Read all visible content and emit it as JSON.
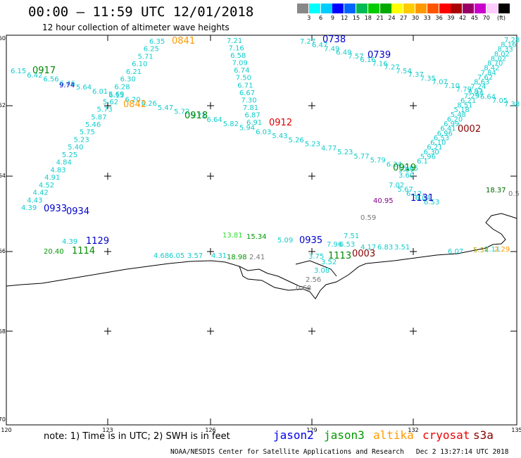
{
  "header": {
    "title": "00:00 – 11:59 UTC 12/01/2018",
    "subtitle": "12 hour collection of altimeter wave heights"
  },
  "legend": {
    "units": "(ft)",
    "items": [
      {
        "label": "",
        "color": "#888888"
      },
      {
        "label": "3",
        "color": "#00ffff"
      },
      {
        "label": "6",
        "color": "#00ccff"
      },
      {
        "label": "9",
        "color": "#0000ff"
      },
      {
        "label": "12",
        "color": "#0066ff"
      },
      {
        "label": "15",
        "color": "#00bb55"
      },
      {
        "label": "18",
        "color": "#00cc00"
      },
      {
        "label": "21",
        "color": "#00aa00"
      },
      {
        "label": "24",
        "color": "#ffff00"
      },
      {
        "label": "27",
        "color": "#ffcc00"
      },
      {
        "label": "30",
        "color": "#ff9900"
      },
      {
        "label": "33",
        "color": "#ff5500"
      },
      {
        "label": "36",
        "color": "#ff0000"
      },
      {
        "label": "39",
        "color": "#aa0000"
      },
      {
        "label": "42",
        "color": "#990066"
      },
      {
        "label": "45",
        "color": "#cc00cc"
      },
      {
        "label": "70",
        "color": "#ffccff"
      },
      {
        "label": "",
        "color": "#000000"
      }
    ]
  },
  "map": {
    "lat_labels": [
      "-60",
      "-62",
      "-64",
      "-66",
      "-68",
      "-70"
    ],
    "lon_labels": [
      "120",
      "123",
      "126",
      "129",
      "132",
      "135"
    ],
    "pass_labels": [
      {
        "text": "0738",
        "color": "#0000cc"
      },
      {
        "text": "0739",
        "color": "#0000cc"
      },
      {
        "text": "0841",
        "color": "#ff9900"
      },
      {
        "text": "0842",
        "color": "#ff9900"
      },
      {
        "text": "0917",
        "color": "#008800"
      },
      {
        "text": "0918",
        "color": "#008800"
      },
      {
        "text": "0919",
        "color": "#008800"
      },
      {
        "text": "0912",
        "color": "#dd0000"
      },
      {
        "text": "0002",
        "color": "#880000"
      },
      {
        "text": "0003",
        "color": "#880000"
      },
      {
        "text": "0933",
        "color": "#0000cc"
      },
      {
        "text": "0934",
        "color": "#0000cc"
      },
      {
        "text": "0935",
        "color": "#0000cc"
      },
      {
        "text": "1129",
        "color": "#0000cc"
      },
      {
        "text": "1131",
        "color": "#0000cc"
      },
      {
        "text": "1114",
        "color": "#008800"
      },
      {
        "text": "1113",
        "color": "#008800"
      }
    ],
    "readings": {
      "c1": [
        "6.35",
        "6.25",
        "5.71",
        "6.10",
        "6.21",
        "6.30",
        "6.28",
        "5.69",
        "5.62",
        "5.73",
        "5.87",
        "5.46",
        "5.75",
        "5.23",
        "5.40",
        "5.25",
        "4.84",
        "4.83",
        "4.91",
        "4.52",
        "4.42",
        "4.43",
        "4.39"
      ],
      "c2": [
        "7.21",
        "7.16",
        "6.58",
        "7.09",
        "6.74",
        "7.50",
        "6.71",
        "6.67",
        "7.30",
        "7.81",
        "6.87",
        "6.91"
      ],
      "c3": [
        "7.27",
        "6.47",
        "7.49",
        "6.49",
        "7.57",
        "6.16",
        "7.16",
        "7.27",
        "7.54",
        "7.37",
        "7.35",
        "7.07",
        "7.10",
        "7.79",
        "7.34",
        "6.64",
        "7.05",
        "7.38"
      ],
      "c4": [
        "6.15",
        "6.42",
        "6.56",
        "6.46",
        "5.64",
        "6.01",
        "6.15",
        "6.20",
        "6.26",
        "5.47",
        "5.72",
        "5.73",
        "6.64",
        "5.82",
        "5.94",
        "6.03",
        "5.43",
        "5.26",
        "5.23",
        "4.77",
        "5.23",
        "5.77",
        "5.79",
        "6.24",
        "5.95"
      ],
      "c5": [
        "7.28",
        "8.16",
        "8.33",
        "8.02",
        "8.02",
        "8.70",
        "8.42",
        "7.84",
        "7.62",
        "8.63",
        "7.24",
        "7.87",
        "7.29",
        "6.21",
        "8.51",
        "5.18",
        "5.48",
        "6.20",
        "6.99",
        "6.41",
        "6.96",
        "6.53",
        "6.10",
        "6.21",
        "6.30",
        "5.96",
        "6.1"
      ],
      "c6": [
        "7.02",
        "5.67",
        "6.12",
        "6.04",
        "6.53"
      ],
      "c7": [
        "4.39",
        "20.40",
        "4.68",
        "6.05",
        "3.57",
        "4.31",
        "18.98",
        "2.41",
        "13.81",
        "15.34",
        "5.09",
        "7.51",
        "7.96",
        "6.53",
        "3.75",
        "3.52",
        "3.08",
        "2.56",
        "0.68",
        "4.17",
        "6.83",
        "3.51",
        "6.07",
        "5.34",
        "18.37",
        "0.5",
        "40.95",
        "0.59",
        "9.74",
        "5.99",
        "3.60",
        "2.11",
        "2.29"
      ]
    }
  },
  "footer": {
    "note": "note: 1) Time is in UTC; 2) SWH is in feet",
    "satellites": [
      {
        "name": "jason2",
        "color": "#0000ee"
      },
      {
        "name": "jason3",
        "color": "#009900"
      },
      {
        "name": "altika",
        "color": "#ff9900"
      },
      {
        "name": "cryosat",
        "color": "#ee0000"
      },
      {
        "name": "s3a",
        "color": "#880000"
      }
    ],
    "credit": "NOAA/NESDIS Center for Satellite Applications and Research",
    "timestamp": "Dec  2 13:27:14 UTC 2018"
  }
}
